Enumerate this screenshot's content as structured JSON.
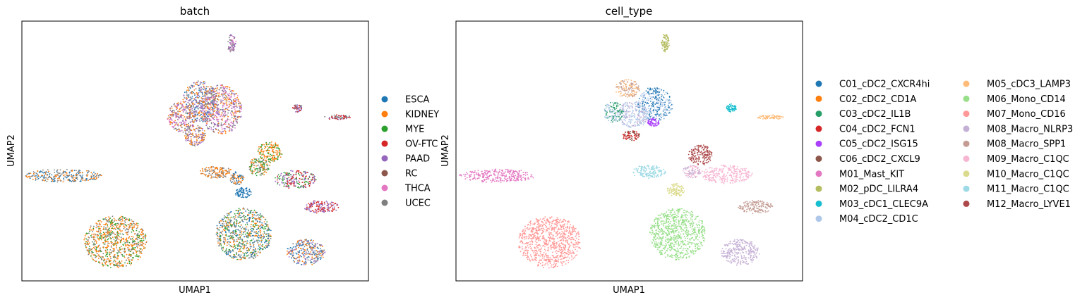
{
  "chart_data": [
    {
      "type": "scatter",
      "title": "batch",
      "xlabel": "UMAP1",
      "ylabel": "UMAP2",
      "xlim": [
        0,
        100
      ],
      "ylim": [
        0,
        100
      ],
      "grid": false,
      "legend_placement": "right",
      "legend": [
        {
          "label": "ESCA",
          "color": "#1f77b4"
        },
        {
          "label": "KIDNEY",
          "color": "#ff7f0e"
        },
        {
          "label": "MYE",
          "color": "#2ca02c"
        },
        {
          "label": "OV-FTC",
          "color": "#d62728"
        },
        {
          "label": "PAAD",
          "color": "#9467bd"
        },
        {
          "label": "RC",
          "color": "#8c564b"
        },
        {
          "label": "THCA",
          "color": "#e377c2"
        },
        {
          "label": "UCEC",
          "color": "#7f7f7f"
        }
      ],
      "clusters": [
        {
          "x": 60.5,
          "y": 91.5,
          "rx": 1.2,
          "ry": 3.5,
          "colors": [
            "#e377c2",
            "#7f7f7f",
            "#9467bd"
          ]
        },
        {
          "x": 51.5,
          "y": 69.0,
          "rx": 5.0,
          "ry": 8.0,
          "colors": [
            "#ff7f0e",
            "#7f7f7f",
            "#1f77b4",
            "#9467bd"
          ]
        },
        {
          "x": 57.5,
          "y": 66.0,
          "rx": 6.0,
          "ry": 9.5,
          "colors": [
            "#ff7f0e",
            "#7f7f7f",
            "#9467bd",
            "#e377c2"
          ]
        },
        {
          "x": 46.0,
          "y": 63.0,
          "rx": 4.0,
          "ry": 6.0,
          "colors": [
            "#e377c2",
            "#7f7f7f",
            "#ff7f0e",
            "#9467bd"
          ]
        },
        {
          "x": 50.0,
          "y": 56.0,
          "rx": 3.0,
          "ry": 4.0,
          "colors": [
            "#ff7f0e",
            "#7f7f7f",
            "#9467bd"
          ]
        },
        {
          "x": 79.5,
          "y": 66.5,
          "rx": 1.4,
          "ry": 1.5,
          "colors": [
            "#d62728",
            "#9467bd",
            "#7f7f7f"
          ]
        },
        {
          "x": 91.0,
          "y": 63.0,
          "rx": 4.0,
          "ry": 0.8,
          "colors": [
            "#d62728",
            "#9467bd",
            "#7f7f7f"
          ]
        },
        {
          "x": 71.5,
          "y": 49.5,
          "rx": 3.5,
          "ry": 4.0,
          "colors": [
            "#ff7f0e",
            "#2ca02c"
          ]
        },
        {
          "x": 68.5,
          "y": 44.0,
          "rx": 3.0,
          "ry": 3.5,
          "colors": [
            "#2ca02c",
            "#ff7f0e",
            "#7f7f7f"
          ]
        },
        {
          "x": 56.0,
          "y": 42.0,
          "rx": 4.5,
          "ry": 2.5,
          "colors": [
            "#ff7f0e",
            "#7f7f7f"
          ]
        },
        {
          "x": 62.0,
          "y": 39.5,
          "rx": 2.0,
          "ry": 2.5,
          "colors": [
            "#7f7f7f",
            "#1f77b4",
            "#ff7f0e"
          ]
        },
        {
          "x": 64.0,
          "y": 34.0,
          "rx": 2.5,
          "ry": 2.0,
          "colors": [
            "#1f77b4"
          ]
        },
        {
          "x": 79.0,
          "y": 39.0,
          "rx": 6.0,
          "ry": 3.5,
          "colors": [
            "#d62728",
            "#9467bd",
            "#2ca02c"
          ]
        },
        {
          "x": 12.0,
          "y": 40.5,
          "rx": 11.0,
          "ry": 2.5,
          "colors": [
            "#1f77b4",
            "#ff7f0e",
            "#7f7f7f"
          ]
        },
        {
          "x": 86.5,
          "y": 28.5,
          "rx": 5.0,
          "ry": 2.5,
          "colors": [
            "#d62728",
            "#9467bd"
          ]
        },
        {
          "x": 27.0,
          "y": 15.0,
          "rx": 9.0,
          "ry": 10.0,
          "colors": [
            "#ff7f0e",
            "#2ca02c",
            "#ff7f0e",
            "#7f7f7f"
          ]
        },
        {
          "x": 64.0,
          "y": 18.0,
          "rx": 8.0,
          "ry": 10.0,
          "colors": [
            "#ff7f0e",
            "#7f7f7f",
            "#1f77b4",
            "#2ca02c"
          ]
        },
        {
          "x": 82.0,
          "y": 11.0,
          "rx": 5.5,
          "ry": 5.0,
          "colors": [
            "#1f77b4",
            "#9467bd",
            "#7f7f7f",
            "#ff7f0e"
          ]
        }
      ]
    },
    {
      "type": "scatter",
      "title": "cell_type",
      "xlabel": "UMAP1",
      "ylabel": "UMAP2",
      "xlim": [
        0,
        100
      ],
      "ylim": [
        0,
        100
      ],
      "grid": false,
      "legend_placement": "right",
      "legend": [
        {
          "label": "C01_cDC2_CXCR4hi",
          "color": "#1f77b4"
        },
        {
          "label": "C02_cDC2_CD1A",
          "color": "#ff7f0e"
        },
        {
          "label": "C03_cDC2_IL1B",
          "color": "#279e68"
        },
        {
          "label": "C04_cDC2_FCN1",
          "color": "#d62728"
        },
        {
          "label": "C05_cDC2_ISG15",
          "color": "#aa40fc"
        },
        {
          "label": "C06_cDC2_CXCL9",
          "color": "#8c564b"
        },
        {
          "label": "M01_Mast_KIT",
          "color": "#e377c2"
        },
        {
          "label": "M02_pDC_LILRA4",
          "color": "#b5bd61"
        },
        {
          "label": "M03_cDC1_CLEC9A",
          "color": "#17becf"
        },
        {
          "label": "M04_cDC2_CD1C",
          "color": "#aec7e8"
        },
        {
          "label": "M05_cDC3_LAMP3",
          "color": "#ffbb78"
        },
        {
          "label": "M06_Mono_CD14",
          "color": "#98df8a"
        },
        {
          "label": "M07_Mono_CD16",
          "color": "#ff9896"
        },
        {
          "label": "M08_Macro_NLRP3",
          "color": "#c5b0d5"
        },
        {
          "label": "M08_Macro_SPP1",
          "color": "#c49c94"
        },
        {
          "label": "M09_Macro_C1QC",
          "color": "#f7b6d2"
        },
        {
          "label": "M10_Macro_C1QC",
          "color": "#dbdb8d"
        },
        {
          "label": "M11_Macro_C1QC",
          "color": "#9edae5"
        },
        {
          "label": "M12_Macro_LYVE1",
          "color": "#ad494a"
        }
      ],
      "clusters": [
        {
          "x": 60.5,
          "y": 91.5,
          "rx": 1.2,
          "ry": 3.5,
          "colors": [
            "#b5bd61"
          ]
        },
        {
          "x": 49.5,
          "y": 74.0,
          "rx": 3.5,
          "ry": 3.5,
          "colors": [
            "#c49c94",
            "#ffbb78"
          ]
        },
        {
          "x": 57.5,
          "y": 68.0,
          "rx": 5.0,
          "ry": 6.5,
          "colors": [
            "#1f77b4",
            "#aec7e8"
          ]
        },
        {
          "x": 51.0,
          "y": 64.0,
          "rx": 4.5,
          "ry": 5.0,
          "colors": [
            "#aec7e8",
            "#aec7e8",
            "#c5b0d5"
          ]
        },
        {
          "x": 45.5,
          "y": 65.0,
          "rx": 2.8,
          "ry": 4.0,
          "colors": [
            "#279e68",
            "#aec7e8"
          ]
        },
        {
          "x": 57.0,
          "y": 61.0,
          "rx": 1.8,
          "ry": 1.6,
          "colors": [
            "#aa40fc"
          ]
        },
        {
          "x": 50.5,
          "y": 56.0,
          "rx": 2.5,
          "ry": 2.0,
          "colors": [
            "#d62728",
            "#8c564b"
          ]
        },
        {
          "x": 79.5,
          "y": 66.5,
          "rx": 1.5,
          "ry": 1.5,
          "colors": [
            "#17becf"
          ]
        },
        {
          "x": 91.0,
          "y": 63.0,
          "rx": 4.0,
          "ry": 0.8,
          "colors": [
            "#ffbb78"
          ]
        },
        {
          "x": 70.5,
          "y": 48.5,
          "rx": 3.5,
          "ry": 4.0,
          "colors": [
            "#ad494a"
          ]
        },
        {
          "x": 78.0,
          "y": 41.0,
          "rx": 7.5,
          "ry": 3.5,
          "colors": [
            "#f7b6d2"
          ]
        },
        {
          "x": 68.0,
          "y": 42.0,
          "rx": 2.5,
          "ry": 2.5,
          "colors": [
            "#f7b6d2",
            "#c5b0d5"
          ]
        },
        {
          "x": 55.5,
          "y": 42.0,
          "rx": 5.0,
          "ry": 2.5,
          "colors": [
            "#9edae5"
          ]
        },
        {
          "x": 63.5,
          "y": 35.0,
          "rx": 2.5,
          "ry": 2.5,
          "colors": [
            "#dbdb8d"
          ]
        },
        {
          "x": 12.0,
          "y": 40.5,
          "rx": 11.0,
          "ry": 2.5,
          "colors": [
            "#e377c2"
          ]
        },
        {
          "x": 86.5,
          "y": 28.5,
          "rx": 5.0,
          "ry": 2.5,
          "colors": [
            "#c49c94"
          ]
        },
        {
          "x": 27.0,
          "y": 15.0,
          "rx": 9.0,
          "ry": 10.0,
          "colors": [
            "#ff9896"
          ]
        },
        {
          "x": 64.0,
          "y": 18.0,
          "rx": 8.0,
          "ry": 10.0,
          "colors": [
            "#98df8a"
          ]
        },
        {
          "x": 82.0,
          "y": 11.0,
          "rx": 5.5,
          "ry": 5.0,
          "colors": [
            "#c5b0d5"
          ]
        }
      ]
    }
  ]
}
